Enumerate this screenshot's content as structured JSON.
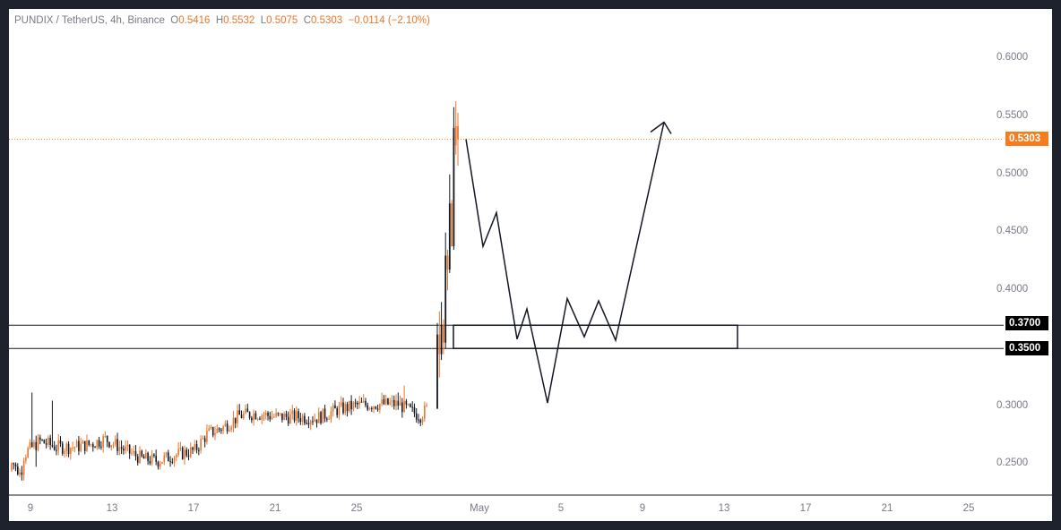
{
  "legend": {
    "symbol": "PUNDIX / TetherUS, 4h, Binance",
    "open_key": "O",
    "open": "0.5416",
    "high_key": "H",
    "high": "0.5532",
    "low_key": "L",
    "low": "0.5075",
    "close_key": "C",
    "close": "0.5303",
    "change": "−0.0114 (−2.10%)"
  },
  "price_axis": [
    "0.6000",
    "0.5500",
    "0.5000",
    "0.4500",
    "0.4000",
    "0.3000",
    "0.2500"
  ],
  "price_tags": {
    "last": {
      "label": "0.5303",
      "bg": "#f57c1f",
      "fg": "#ffffff"
    },
    "upper": {
      "label": "0.3700",
      "bg": "#000000",
      "fg": "#ffffff"
    },
    "lower": {
      "label": "0.3500",
      "bg": "#000000",
      "fg": "#ffffff"
    }
  },
  "time_axis": [
    "9",
    "13",
    "17",
    "21",
    "25",
    "May",
    "5",
    "9",
    "13",
    "17",
    "21",
    "25"
  ],
  "colors": {
    "up": "#e8772e",
    "down": "#131722",
    "last_line": "#f57c1f",
    "axis_text": "#787b86"
  },
  "zone": {
    "top_price": 0.37,
    "bottom_price": 0.35
  },
  "projection_path_prices": [
    0.5303,
    0.438,
    0.467,
    0.358,
    0.384,
    0.303,
    0.393,
    0.36,
    0.391,
    0.357,
    0.545
  ]
}
